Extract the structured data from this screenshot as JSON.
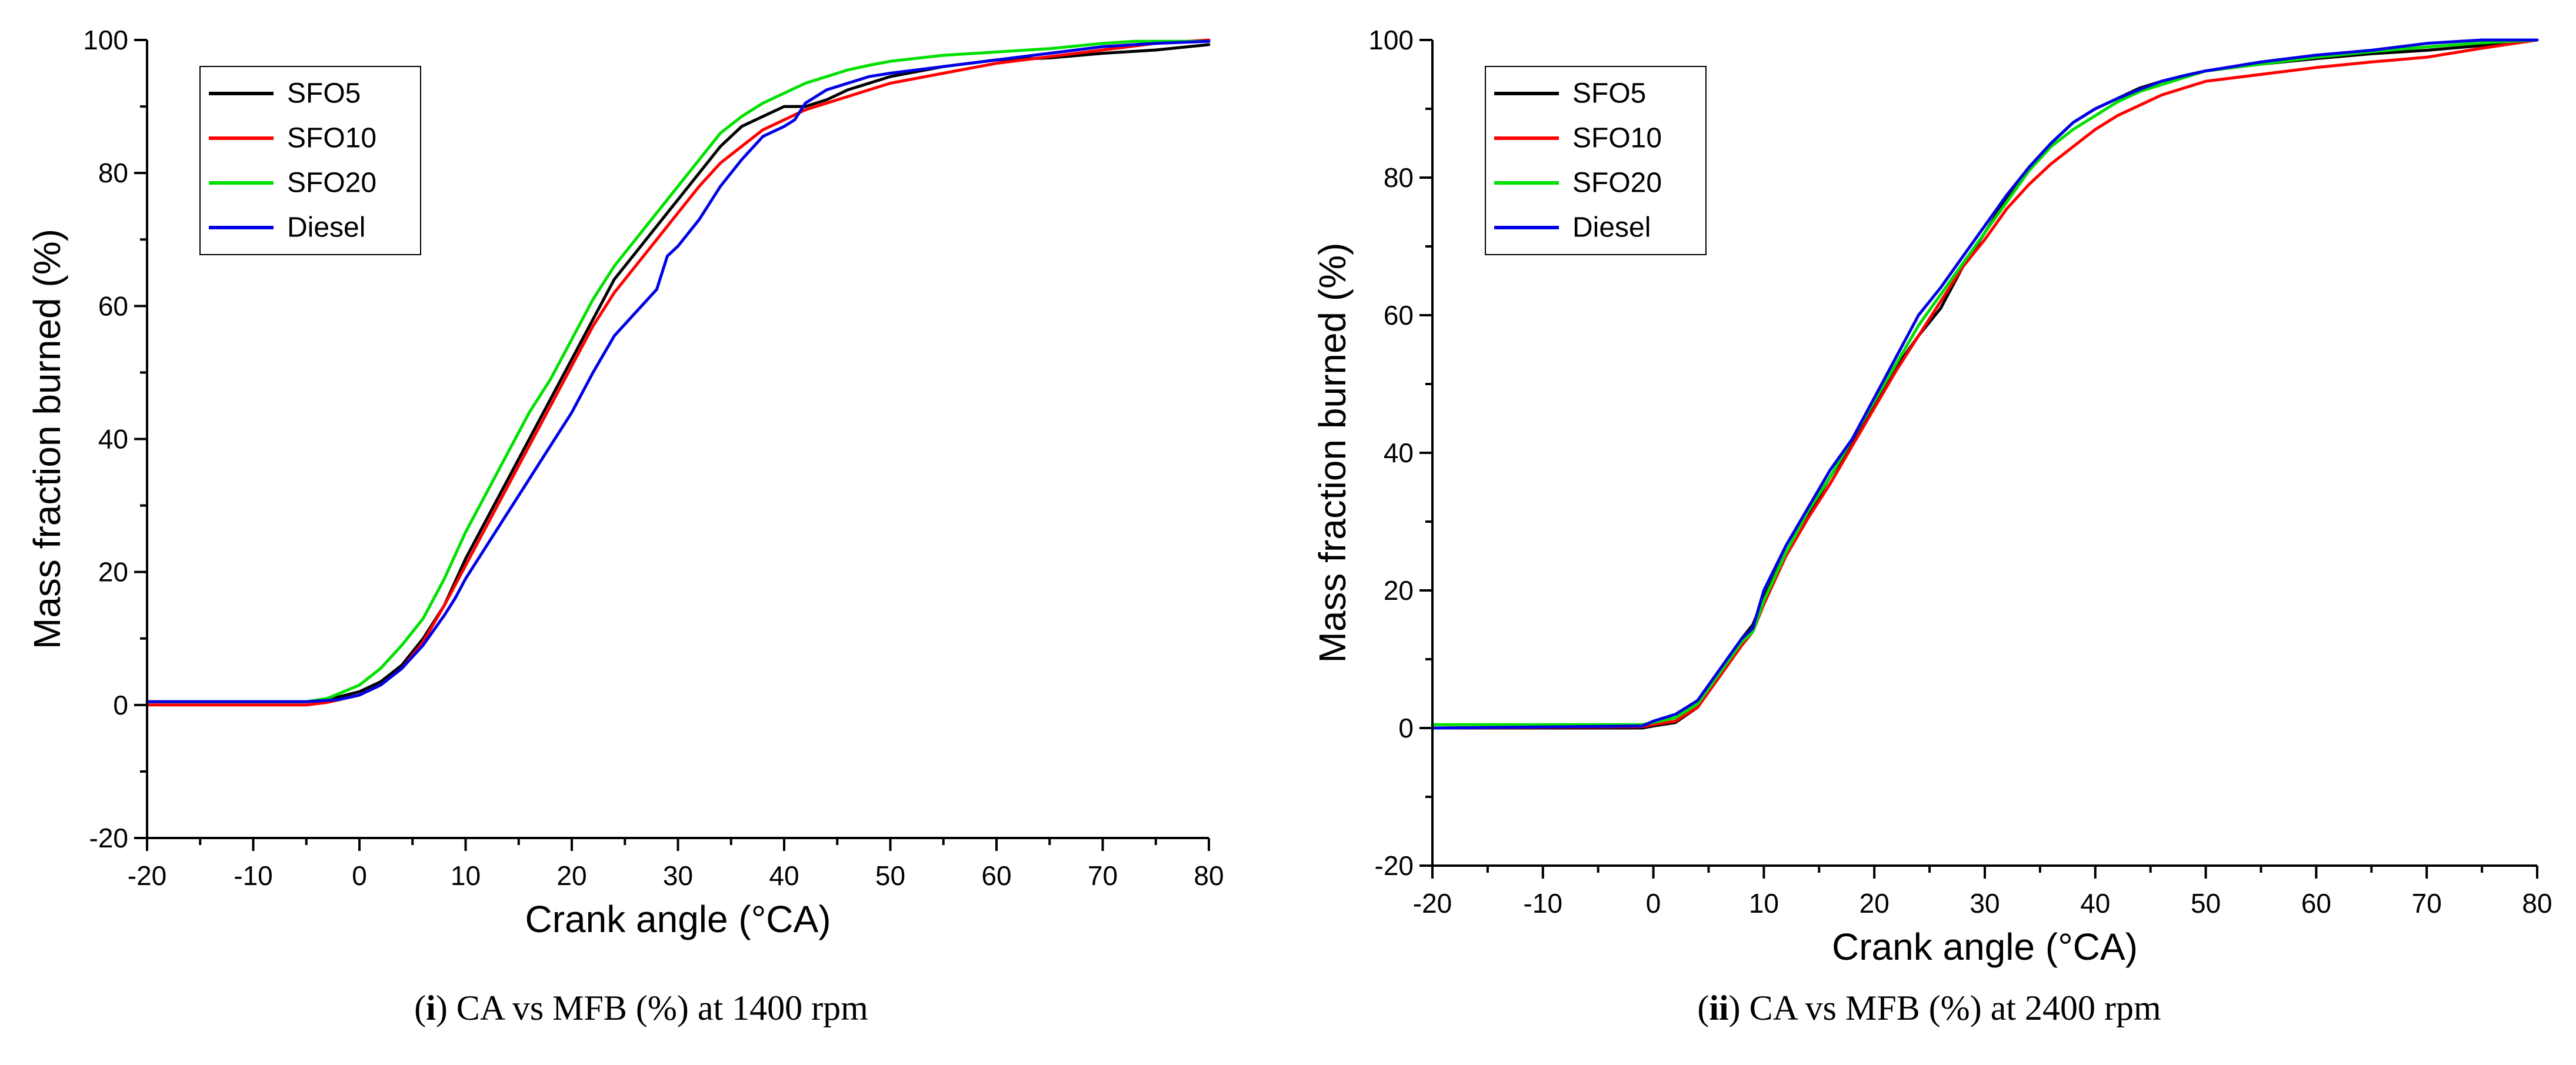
{
  "chart_data": [
    {
      "type": "line",
      "title": "",
      "xlabel": "Crank angle (°CA)",
      "ylabel": "Mass fraction burned (%)",
      "xlim": [
        -20,
        80
      ],
      "ylim": [
        -20,
        100
      ],
      "xticks": [
        -20,
        -10,
        0,
        10,
        20,
        30,
        40,
        50,
        60,
        70,
        80
      ],
      "yticks": [
        -20,
        0,
        20,
        40,
        60,
        80,
        100
      ],
      "legend_position": "top-left",
      "caption": {
        "num": "i",
        "text": "CA vs MFB (%) at 1400 rpm"
      },
      "series": [
        {
          "name": "SFO5",
          "color": "#000000",
          "x": [
            -20,
            -5,
            -3,
            0,
            2,
            4,
            6,
            8,
            10,
            12,
            14,
            16,
            18,
            20,
            22,
            24,
            26,
            28,
            30,
            32,
            34,
            36,
            38,
            40,
            42,
            44,
            46,
            48,
            50,
            55,
            60,
            65,
            70,
            75,
            80
          ],
          "y": [
            0.5,
            0.5,
            0.8,
            2,
            3.5,
            6,
            10,
            15,
            22,
            28,
            34,
            40,
            46,
            52,
            58,
            64,
            68,
            72,
            76,
            80,
            84,
            87,
            88.5,
            90,
            90,
            91,
            92.5,
            93.5,
            94.5,
            96,
            97,
            97.3,
            98,
            98.5,
            99.3
          ]
        },
        {
          "name": "SFO10",
          "color": "#ff0000",
          "x": [
            -20,
            -5,
            -3,
            0,
            2,
            4,
            6,
            8,
            10,
            12,
            14,
            16,
            18,
            20,
            22,
            24,
            26,
            28,
            30,
            32,
            34,
            36,
            38,
            40,
            42,
            44,
            46,
            48,
            50,
            55,
            60,
            65,
            70,
            75,
            80
          ],
          "y": [
            0,
            0,
            0.4,
            1.5,
            3,
            5.5,
            9.5,
            15,
            21,
            27,
            33,
            39,
            45,
            51,
            57,
            62,
            66,
            70,
            74,
            78,
            81.5,
            84,
            86.5,
            88,
            89.5,
            90.5,
            91.5,
            92.5,
            93.5,
            95,
            96.5,
            97.5,
            98.5,
            99.5,
            100
          ]
        },
        {
          "name": "SFO20",
          "color": "#00e000",
          "x": [
            -20,
            -5,
            -3,
            0,
            2,
            4,
            6,
            8,
            10,
            12,
            14,
            16,
            18,
            20,
            22,
            24,
            26,
            28,
            30,
            32,
            34,
            36,
            38,
            40,
            42,
            44,
            46,
            48,
            50,
            55,
            60,
            65,
            70,
            73,
            75,
            80
          ],
          "y": [
            0.5,
            0.5,
            1,
            3,
            5.5,
            9,
            13,
            19,
            26,
            32,
            38,
            44,
            49,
            55,
            61,
            66,
            70,
            74,
            78,
            82,
            86,
            88.5,
            90.5,
            92,
            93.5,
            94.5,
            95.5,
            96.2,
            96.8,
            97.7,
            98.2,
            98.7,
            99.5,
            99.8,
            99.8,
            99.8
          ]
        },
        {
          "name": "Diesel",
          "color": "#0000e6",
          "x": [
            -20,
            -5,
            -2,
            0,
            2,
            4,
            6,
            8,
            9,
            10,
            12,
            14,
            16,
            18,
            20,
            22,
            24,
            26,
            28,
            29,
            30,
            32,
            34,
            36,
            38,
            40,
            41,
            42,
            44,
            46,
            48,
            50,
            55,
            60,
            65,
            70,
            75,
            80
          ],
          "y": [
            0.5,
            0.5,
            0.8,
            1.5,
            3,
            5.5,
            9,
            13.5,
            16,
            19,
            24,
            29,
            34,
            39,
            44,
            50,
            55.5,
            59,
            62.5,
            67.5,
            69,
            73,
            78,
            82,
            85.5,
            87,
            88,
            90.5,
            92.5,
            93.5,
            94.5,
            95,
            96,
            97,
            98,
            99,
            99.5,
            99.8
          ]
        }
      ]
    },
    {
      "type": "line",
      "title": "",
      "xlabel": "Crank angle (°CA)",
      "ylabel": "Mass fraction burned (%)",
      "xlim": [
        -20,
        80
      ],
      "ylim": [
        -20,
        100
      ],
      "xticks": [
        -20,
        -10,
        0,
        10,
        20,
        30,
        40,
        50,
        60,
        70,
        80
      ],
      "yticks": [
        -20,
        0,
        20,
        40,
        60,
        80,
        100
      ],
      "legend_position": "top-left",
      "caption": {
        "num": "ii",
        "text": "CA vs MFB (%) at 2400 rpm"
      },
      "series": [
        {
          "name": "SFO5",
          "color": "#000000",
          "x": [
            -20,
            -1,
            0,
            2,
            4,
            6,
            8,
            9,
            10,
            12,
            14,
            16,
            18,
            20,
            22,
            24,
            26,
            28,
            30,
            32,
            34,
            36,
            38,
            40,
            42,
            44,
            46,
            48,
            50,
            55,
            60,
            65,
            70,
            75,
            80
          ],
          "y": [
            0,
            0,
            0.3,
            0.8,
            3,
            8,
            13,
            15,
            19,
            25.5,
            31,
            36.5,
            41.5,
            47,
            52.5,
            57,
            61,
            67,
            72,
            77,
            81.5,
            85,
            88,
            90,
            91.5,
            93,
            94,
            94.8,
            95.5,
            96.5,
            97.3,
            98,
            98.5,
            99.2,
            100
          ]
        },
        {
          "name": "SFO10",
          "color": "#ff0000",
          "x": [
            -20,
            -1,
            0,
            2,
            4,
            6,
            8,
            9,
            10,
            12,
            14,
            16,
            18,
            20,
            22,
            24,
            26,
            28,
            30,
            32,
            34,
            36,
            38,
            40,
            42,
            44,
            46,
            48,
            50,
            55,
            60,
            65,
            70,
            75,
            80
          ],
          "y": [
            0,
            0.2,
            0.5,
            1,
            3,
            7.5,
            12,
            14,
            18,
            25,
            30.5,
            35.5,
            41,
            46.5,
            52,
            57,
            62,
            67,
            71,
            75.5,
            79,
            82,
            84.5,
            87,
            89,
            90.5,
            92,
            93,
            94,
            95,
            96,
            96.8,
            97.5,
            98.8,
            100
          ]
        },
        {
          "name": "SFO20",
          "color": "#00e000",
          "x": [
            -20,
            -1,
            0,
            2,
            4,
            6,
            8,
            9,
            10,
            12,
            14,
            16,
            18,
            20,
            22,
            24,
            26,
            28,
            30,
            32,
            34,
            36,
            38,
            40,
            42,
            44,
            46,
            48,
            50,
            55,
            60,
            65,
            70,
            75,
            80
          ],
          "y": [
            0.5,
            0.5,
            0.8,
            1.5,
            3.5,
            8,
            12.5,
            14,
            18.5,
            25.5,
            31.5,
            36.5,
            42,
            47.5,
            53,
            58.5,
            63,
            67.5,
            72,
            76.5,
            81,
            84.5,
            87,
            89,
            91,
            92.5,
            93.5,
            94.5,
            95.5,
            96.5,
            97.5,
            98.3,
            99,
            99.6,
            100
          ]
        },
        {
          "name": "Diesel",
          "color": "#0000e6",
          "x": [
            -20,
            -1,
            0,
            2,
            4,
            6,
            8,
            9,
            10,
            12,
            14,
            16,
            18,
            20,
            22,
            24,
            26,
            28,
            30,
            32,
            34,
            36,
            38,
            40,
            42,
            44,
            46,
            48,
            50,
            55,
            60,
            65,
            70,
            75,
            80
          ],
          "y": [
            0,
            0.3,
            1,
            2,
            4,
            8.5,
            13,
            14.5,
            20,
            26.5,
            32,
            37.5,
            42,
            48,
            54,
            60,
            64,
            68.5,
            73,
            77.5,
            81.5,
            85,
            88,
            90,
            91.5,
            92.8,
            94,
            94.8,
            95.5,
            96.8,
            97.8,
            98.5,
            99.5,
            100,
            100
          ]
        }
      ]
    }
  ]
}
